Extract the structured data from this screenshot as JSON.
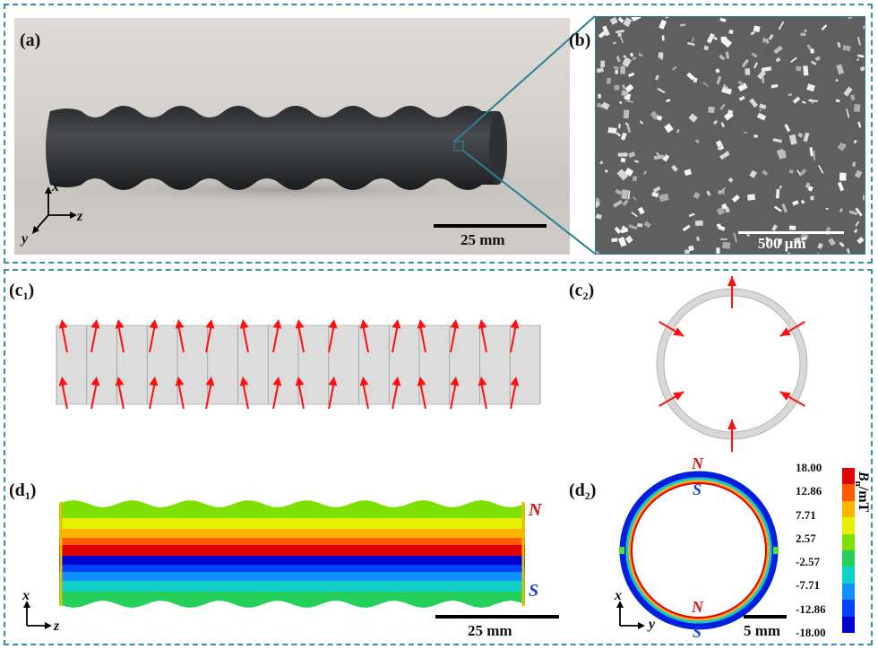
{
  "panels": {
    "a": {
      "label": "(a)",
      "scale_bar": "25 mm",
      "axes": {
        "x": "x",
        "y": "y",
        "z": "z"
      }
    },
    "b": {
      "label": "(b)",
      "scale_bar": "500 μm"
    },
    "c1": {
      "label_main": "(c",
      "label_sub": "1",
      "label_end": ")"
    },
    "c2": {
      "label_main": "(c",
      "label_sub": "2",
      "label_end": ")"
    },
    "d1": {
      "label_main": "(d",
      "label_sub": "1",
      "label_end": ")",
      "north": "N",
      "south": "S",
      "scale_bar": "25 mm",
      "axes": {
        "x": "x",
        "z": "z"
      }
    },
    "d2": {
      "label_main": "(d",
      "label_sub": "2",
      "label_end": ")",
      "north": "N",
      "south": "S",
      "scale_bar": "5 mm",
      "axes": {
        "x": "x",
        "y": "y"
      }
    }
  },
  "colorbar": {
    "title_main": "B",
    "title_sub": "n",
    "title_unit": "/mT",
    "ticks": [
      "18.00",
      "12.86",
      "7.71",
      "2.57",
      "-2.57",
      "-7.71",
      "-12.86",
      "-18.00"
    ],
    "colors": [
      "#e00000",
      "#ff5a00",
      "#ffb400",
      "#e6f000",
      "#7ee000",
      "#25d05a",
      "#10d0c8",
      "#1090ff",
      "#0040ff",
      "#0000d0"
    ]
  },
  "colors": {
    "frame": "#3a8fa3",
    "arrow": "#ff1010",
    "north": "#e01010",
    "south": "#1d3fe0"
  }
}
